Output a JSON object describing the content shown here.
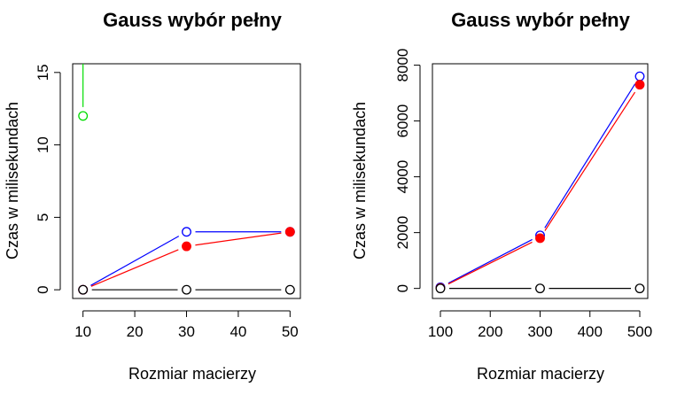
{
  "chart_data": [
    {
      "type": "line",
      "title": "Gauss wybór pełny",
      "xlabel": "Rozmiar macierzy",
      "ylabel": "Czas w milisekundach",
      "x": [
        10,
        30,
        50
      ],
      "xlim": [
        8,
        52
      ],
      "ylim": [
        -0.6,
        15.6
      ],
      "xticks": [
        10,
        20,
        30,
        40,
        50
      ],
      "yticks": [
        0,
        5,
        10,
        15
      ],
      "grid": false,
      "legend": "none",
      "series": [
        {
          "color": "#00dd00",
          "marker": "open-circle",
          "values": [
            12,
            null,
            null
          ],
          "extends_above": true
        },
        {
          "color": "#0000ff",
          "marker": "open-circle",
          "values": [
            0,
            4,
            4
          ]
        },
        {
          "color": "#ff0000",
          "marker": "filled-circle",
          "values": [
            0,
            3,
            4
          ]
        },
        {
          "color": "#000000",
          "marker": "open-circle",
          "values": [
            0,
            0,
            0
          ]
        }
      ]
    },
    {
      "type": "line",
      "title": "Gauss wybór pełny",
      "xlabel": "Rozmiar macierzy",
      "ylabel": "Czas w milisekundach",
      "x": [
        100,
        300,
        500
      ],
      "xlim": [
        84,
        516
      ],
      "ylim": [
        -360,
        8050
      ],
      "xticks": [
        100,
        200,
        300,
        400,
        500
      ],
      "yticks": [
        0,
        2000,
        4000,
        6000,
        8000
      ],
      "grid": false,
      "legend": "none",
      "series": [
        {
          "color": "#0000ff",
          "marker": "open-circle",
          "values": [
            40,
            1900,
            7600
          ]
        },
        {
          "color": "#ff0000",
          "marker": "filled-circle",
          "values": [
            15,
            1800,
            7300
          ]
        },
        {
          "color": "#000000",
          "marker": "open-circle",
          "values": [
            0,
            0,
            0
          ]
        }
      ]
    }
  ]
}
